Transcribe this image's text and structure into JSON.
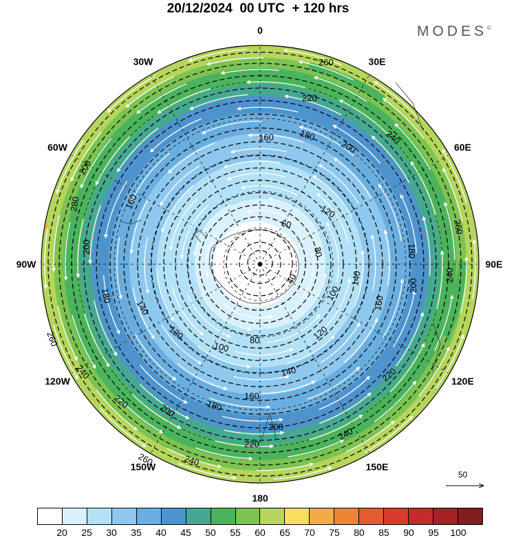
{
  "title": "20/12/2024  00 UTC  + 120 hrs",
  "logo": {
    "text": "MODES",
    "mark": "©"
  },
  "longitude_labels": [
    {
      "text": "0",
      "lon": 0
    },
    {
      "text": "30E",
      "lon": 30
    },
    {
      "text": "60E",
      "lon": 60
    },
    {
      "text": "90E",
      "lon": 90
    },
    {
      "text": "120E",
      "lon": 120
    },
    {
      "text": "150E",
      "lon": 150
    },
    {
      "text": "180",
      "lon": 180
    },
    {
      "text": "150W",
      "lon": -150
    },
    {
      "text": "120W",
      "lon": -120
    },
    {
      "text": "90W",
      "lon": -90
    },
    {
      "text": "60W",
      "lon": -60
    },
    {
      "text": "30W",
      "lon": -30
    }
  ],
  "contour_labels": [
    "260",
    "220",
    "240",
    "200",
    "180",
    "160",
    "120",
    "60",
    "80",
    "40",
    "100",
    "140",
    "160",
    "200",
    "240",
    "260",
    "180",
    "120",
    "100",
    "80",
    "140",
    "200",
    "220",
    "240",
    "260",
    "280",
    "180",
    "140",
    "120",
    "200",
    "180",
    "160",
    "220",
    "200",
    "240",
    "260",
    "220",
    "240",
    "200",
    "160"
  ],
  "colorbar": {
    "colors": [
      "#ffffff",
      "#d9f1fc",
      "#b3e1f7",
      "#8fc8ee",
      "#6aaedf",
      "#4f93cd",
      "#46a98f",
      "#4cb35d",
      "#7cc352",
      "#b5d55c",
      "#f8de5c",
      "#f3ab48",
      "#ee8434",
      "#e65a30",
      "#dc3b2c",
      "#c22b2b",
      "#a32224",
      "#841d1f"
    ],
    "labels": [
      "20",
      "25",
      "30",
      "35",
      "40",
      "45",
      "50",
      "55",
      "60",
      "65",
      "70",
      "75",
      "80",
      "85",
      "90",
      "95",
      "100"
    ]
  },
  "reference_vector": {
    "label": "50"
  },
  "icons": {
    "vector_arrow": "arrow-right-icon",
    "wind_arrow": "arrow-left-icon"
  }
}
